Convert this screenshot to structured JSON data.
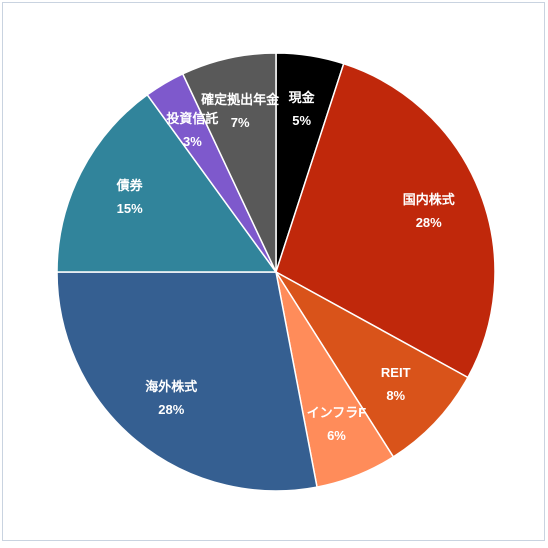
{
  "chart_data": {
    "type": "pie",
    "categories": [
      "現金",
      "国内株式",
      "REIT",
      "インフラF",
      "海外株式",
      "債券",
      "投資信託",
      "確定拠出年金"
    ],
    "values": [
      5,
      28,
      8,
      6,
      28,
      15,
      3,
      7
    ],
    "value_labels": [
      "5%",
      "28%",
      "8%",
      "6%",
      "28%",
      "15%",
      "3%",
      "7%"
    ],
    "colors": [
      "#000000",
      "#c0280b",
      "#d9531a",
      "#ff8c5a",
      "#355f91",
      "#31849b",
      "#7e59cc",
      "#595959"
    ]
  }
}
